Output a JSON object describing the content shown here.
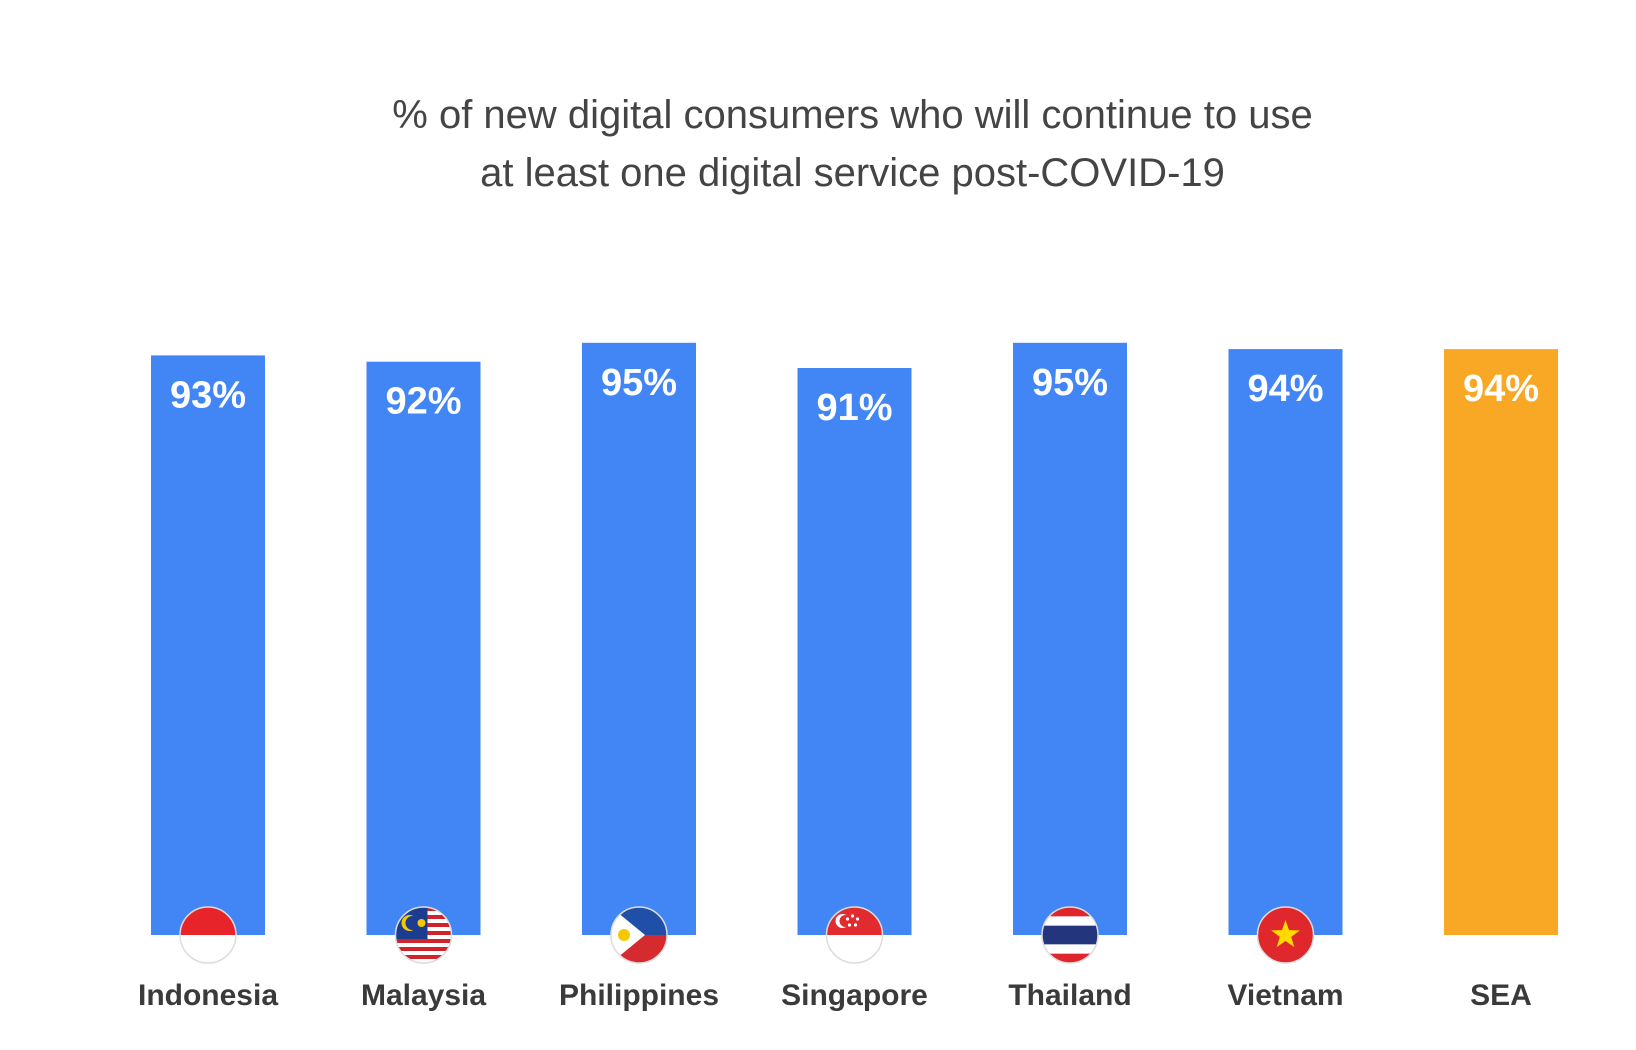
{
  "chart_data": {
    "type": "bar",
    "title_lines": [
      "% of new digital consumers who will continue to use",
      "at least one digital service post-COVID-19"
    ],
    "categories": [
      "Indonesia",
      "Malaysia",
      "Philippines",
      "Singapore",
      "Thailand",
      "Vietnam",
      "SEA"
    ],
    "values": [
      93,
      92,
      95,
      91,
      95,
      94,
      94
    ],
    "value_labels": [
      "93%",
      "92%",
      "95%",
      "91%",
      "95%",
      "94%",
      "94%"
    ],
    "flags": [
      "indonesia-flag-icon",
      "malaysia-flag-icon",
      "philippines-flag-icon",
      "singapore-flag-icon",
      "thailand-flag-icon",
      "vietnam-flag-icon",
      ""
    ],
    "bar_colors": [
      "#4285F4",
      "#4285F4",
      "#4285F4",
      "#4285F4",
      "#4285F4",
      "#4285F4",
      "#F9A825"
    ],
    "ylim": [
      0,
      100
    ],
    "grid": false,
    "legend": "none"
  }
}
